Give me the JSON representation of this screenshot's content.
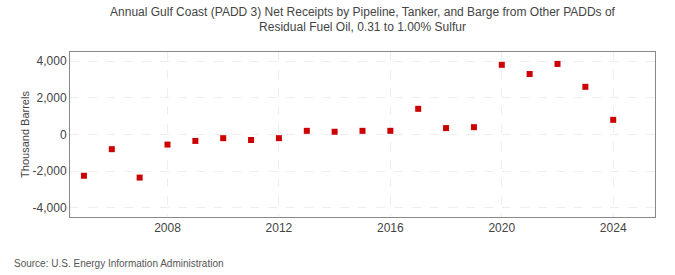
{
  "chart_data": {
    "type": "scatter",
    "title": "Annual Gulf Coast (PADD 3) Net Receipts by Pipeline, Tanker, and Barge from Other PADDs of\nResidual Fuel Oil, 0.31 to 1.00% Sulfur",
    "ylabel": "Thousand Barrels",
    "annotations": [
      "Source: U.S. Energy Information Administration"
    ],
    "x": [
      2005,
      2006,
      2007,
      2008,
      2009,
      2010,
      2011,
      2012,
      2013,
      2014,
      2015,
      2016,
      2017,
      2018,
      2019,
      2020,
      2021,
      2022,
      2023,
      2024
    ],
    "values": [
      -2250,
      -800,
      -2350,
      -550,
      -350,
      -200,
      -300,
      -200,
      200,
      150,
      200,
      200,
      1400,
      350,
      400,
      3800,
      3300,
      3850,
      2600,
      800
    ],
    "color": "#cc0000",
    "marker": "square",
    "xlim": [
      2004.5,
      2025.5
    ],
    "xticks": [
      2008,
      2012,
      2016,
      2020,
      2024
    ],
    "ylim": [
      -4500,
      4500
    ],
    "yticks": [
      {
        "value": -4000,
        "label": "-4,000"
      },
      {
        "value": -2000,
        "label": "-2,000"
      },
      0,
      {
        "value": 2000,
        "label": "2,000"
      },
      {
        "value": 4000,
        "label": "4,000"
      }
    ],
    "grid": true
  }
}
